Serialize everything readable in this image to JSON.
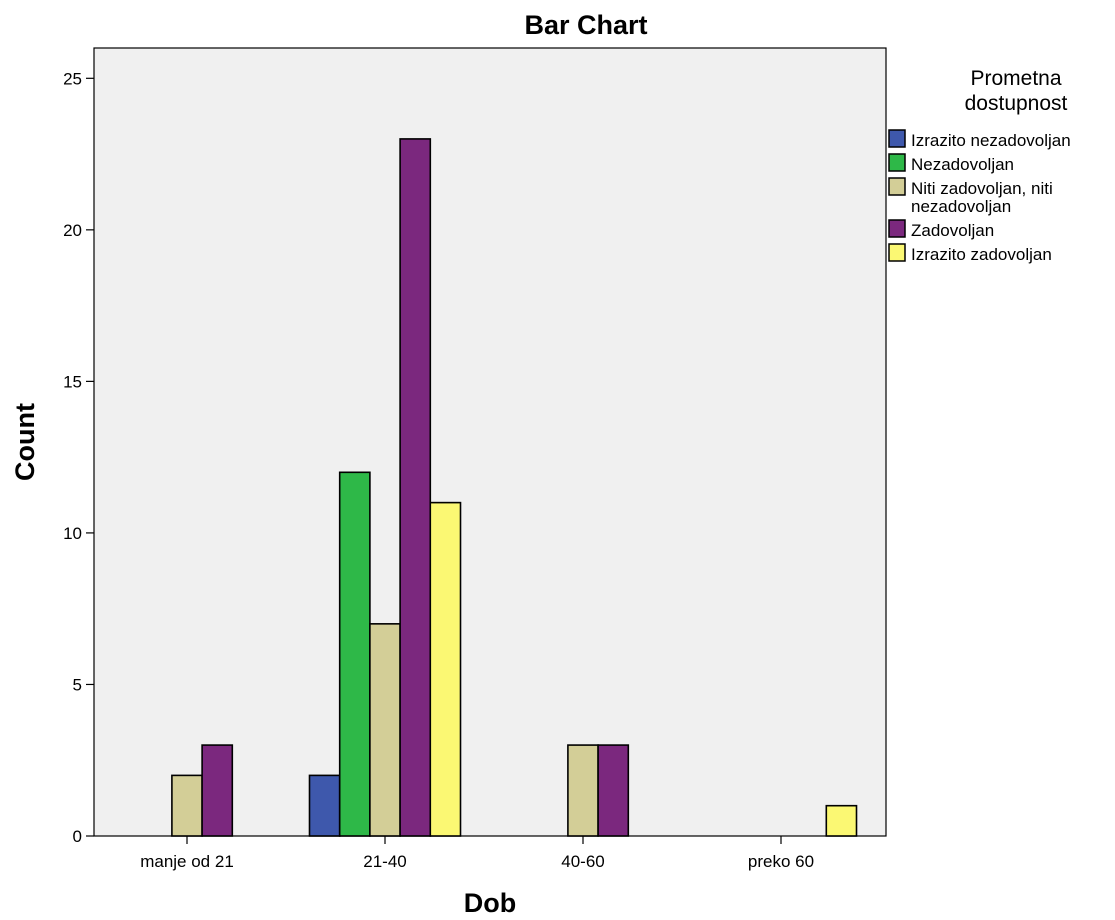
{
  "chart_data": {
    "type": "bar",
    "title": "Bar Chart",
    "xlabel": "Dob",
    "ylabel": "Count",
    "categories": [
      "manje od 21",
      "21-40",
      "40-60",
      "preko 60"
    ],
    "ylim": [
      0,
      26
    ],
    "yticks": [
      0,
      5,
      10,
      15,
      20,
      25
    ],
    "grid": false,
    "legend_title_lines": [
      "Prometna",
      "dostupnost"
    ],
    "legend_position": "right",
    "plot_background": "#f0f0f0",
    "series": [
      {
        "name": "Izrazito nezadovoljan",
        "label_lines": [
          "Izrazito nezadovoljan"
        ],
        "color": "#3e58ac",
        "values": [
          0,
          2,
          0,
          0
        ]
      },
      {
        "name": "Nezadovoljan",
        "label_lines": [
          "Nezadovoljan"
        ],
        "color": "#2eb848",
        "values": [
          0,
          12,
          0,
          0
        ]
      },
      {
        "name": "Niti zadovoljan, niti nezadovoljan",
        "label_lines": [
          "Niti zadovoljan, niti",
          "nezadovoljan"
        ],
        "color": "#d3ce97",
        "values": [
          2,
          7,
          3,
          0
        ]
      },
      {
        "name": "Zadovoljan",
        "label_lines": [
          "Zadovoljan"
        ],
        "color": "#7b287e",
        "values": [
          3,
          23,
          3,
          0
        ]
      },
      {
        "name": "Izrazito zadovoljan",
        "label_lines": [
          "Izrazito zadovoljan"
        ],
        "color": "#fbf873",
        "values": [
          0,
          11,
          0,
          1
        ]
      }
    ]
  }
}
